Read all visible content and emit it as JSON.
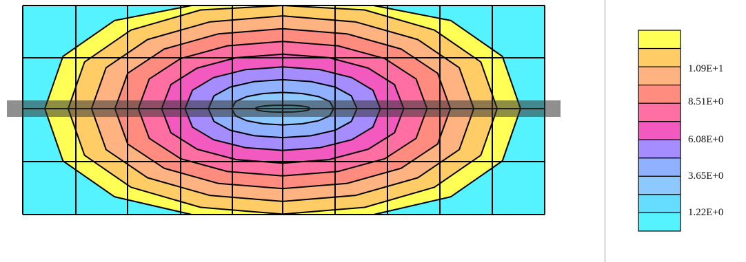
{
  "legend": {
    "colors": [
      "#ffff55",
      "#ffcc66",
      "#ffb380",
      "#ff8c7f",
      "#ff6fa2",
      "#f25ac0",
      "#a58cff",
      "#8fb1ff",
      "#8dc8ff",
      "#66ddff",
      "#55f2ff"
    ],
    "labels": [
      "1.09E+1",
      "8.51E+0",
      "6.08E+0",
      "3.65E+0",
      "1.22E+0"
    ]
  },
  "colors": {
    "background": "#55f2ff",
    "mesh": "#000000",
    "bar": "#333333",
    "divider": "#9a9a9a"
  }
}
